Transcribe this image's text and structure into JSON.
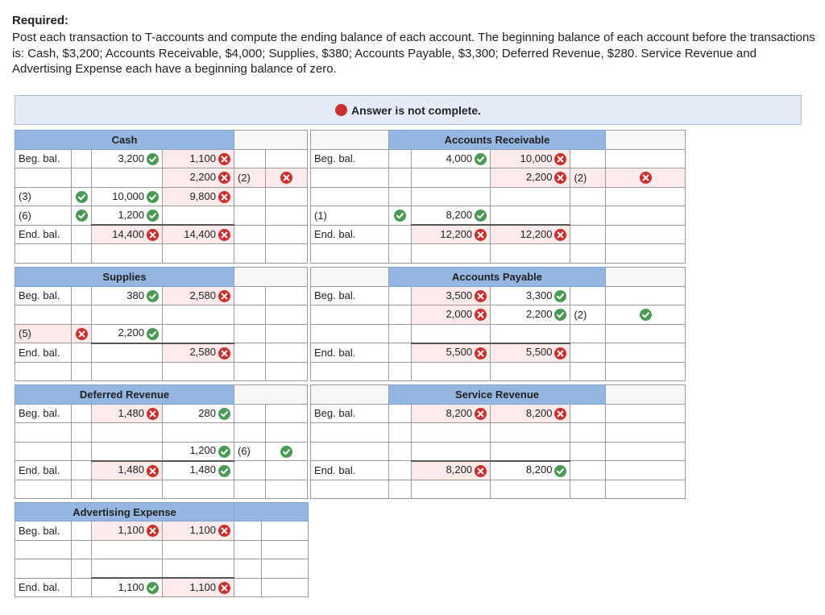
{
  "required": {
    "title": "Required:",
    "text": "Post each transaction to T-accounts and compute the ending balance of each account. The beginning balance of each account before the transactions is: Cash, $3,200; Accounts Receivable, $4,000; Supplies, $380; Accounts Payable, $3,300; Deferred Revenue, $280. Service Revenue and Advertising Expense each have a beginning balance of zero."
  },
  "banner": {
    "text": "Answer is not complete.",
    "icon": "x-circle-icon"
  },
  "colors": {
    "header_blue": "#95b6e1",
    "banner_bg": "#e4ecf8",
    "error_red": "#c9302c",
    "ok_green": "#4a9a55"
  },
  "accounts": {
    "cash": {
      "title": "Cash",
      "rows": [
        {
          "label": "Beg. bal.",
          "label_status": "",
          "debit": "3,200",
          "debit_status": "ok",
          "credit": "1,100",
          "credit_status": "x",
          "ref": "",
          "ref_status": ""
        },
        {
          "label": "",
          "label_status": "",
          "debit": "",
          "debit_status": "",
          "credit": "2,200",
          "credit_status": "x",
          "ref": "(2)",
          "ref_status": "x"
        },
        {
          "label": "(3)",
          "label_status": "ok",
          "debit": "10,000",
          "debit_status": "ok",
          "credit": "9,800",
          "credit_status": "x",
          "ref": "",
          "ref_status": ""
        },
        {
          "label": "(6)",
          "label_status": "ok",
          "debit": "1,200",
          "debit_status": "ok",
          "credit": "",
          "credit_status": "",
          "ref": "",
          "ref_status": ""
        },
        {
          "label": "End. bal.",
          "label_status": "",
          "debit": "14,400",
          "debit_status": "x",
          "credit": "14,400",
          "credit_status": "x",
          "ref": "",
          "ref_status": ""
        }
      ]
    },
    "accounts_receivable": {
      "title": "Accounts Receivable",
      "rows": [
        {
          "label": "Beg. bal.",
          "label_status": "",
          "debit": "4,000",
          "debit_status": "ok",
          "credit": "10,000",
          "credit_status": "x",
          "ref": "",
          "ref_status": ""
        },
        {
          "label": "",
          "label_status": "",
          "debit": "",
          "debit_status": "",
          "credit": "2,200",
          "credit_status": "x",
          "ref": "(2)",
          "ref_status": "x"
        },
        {
          "label": "",
          "label_status": "",
          "debit": "",
          "debit_status": "",
          "credit": "",
          "credit_status": "",
          "ref": "",
          "ref_status": ""
        },
        {
          "label": "(1)",
          "label_status": "ok",
          "debit": "8,200",
          "debit_status": "ok",
          "credit": "",
          "credit_status": "",
          "ref": "",
          "ref_status": ""
        },
        {
          "label": "End. bal.",
          "label_status": "",
          "debit": "12,200",
          "debit_status": "x",
          "credit": "12,200",
          "credit_status": "x",
          "ref": "",
          "ref_status": ""
        }
      ]
    },
    "supplies": {
      "title": "Supplies",
      "rows": [
        {
          "label": "Beg. bal.",
          "label_status": "",
          "debit": "380",
          "debit_status": "ok",
          "credit": "2,580",
          "credit_status": "x",
          "ref": "",
          "ref_status": ""
        },
        {
          "label": "",
          "label_status": "",
          "debit": "",
          "debit_status": "",
          "credit": "",
          "credit_status": "",
          "ref": "",
          "ref_status": ""
        },
        {
          "label": "(5)",
          "label_status": "x",
          "debit": "2,200",
          "debit_status": "ok",
          "credit": "",
          "credit_status": "",
          "ref": "",
          "ref_status": ""
        },
        {
          "label": "End. bal.",
          "label_status": "",
          "debit": "",
          "debit_status": "",
          "credit": "2,580",
          "credit_status": "x",
          "ref": "",
          "ref_status": ""
        }
      ]
    },
    "accounts_payable": {
      "title": "Accounts Payable",
      "rows": [
        {
          "label": "Beg. bal.",
          "label_status": "",
          "debit": "3,500",
          "debit_status": "x",
          "credit": "3,300",
          "credit_status": "ok",
          "ref": "",
          "ref_status": ""
        },
        {
          "label": "",
          "label_status": "",
          "debit": "2,000",
          "debit_status": "x",
          "credit": "2,200",
          "credit_status": "ok",
          "ref": "(2)",
          "ref_status": "ok"
        },
        {
          "label": "",
          "label_status": "",
          "debit": "",
          "debit_status": "",
          "credit": "",
          "credit_status": "",
          "ref": "",
          "ref_status": ""
        },
        {
          "label": "End. bal.",
          "label_status": "",
          "debit": "5,500",
          "debit_status": "x",
          "credit": "5,500",
          "credit_status": "x",
          "ref": "",
          "ref_status": ""
        }
      ]
    },
    "deferred_revenue": {
      "title": "Deferred Revenue",
      "rows": [
        {
          "label": "Beg. bal.",
          "label_status": "",
          "debit": "1,480",
          "debit_status": "x",
          "credit": "280",
          "credit_status": "ok",
          "ref": "",
          "ref_status": ""
        },
        {
          "label": "",
          "label_status": "",
          "debit": "",
          "debit_status": "",
          "credit": "",
          "credit_status": "",
          "ref": "",
          "ref_status": ""
        },
        {
          "label": "",
          "label_status": "",
          "debit": "",
          "debit_status": "",
          "credit": "1,200",
          "credit_status": "ok",
          "ref": "(6)",
          "ref_status": "ok"
        },
        {
          "label": "End. bal.",
          "label_status": "",
          "debit": "1,480",
          "debit_status": "x",
          "credit": "1,480",
          "credit_status": "ok",
          "ref": "",
          "ref_status": ""
        }
      ]
    },
    "service_revenue": {
      "title": "Service Revenue",
      "rows": [
        {
          "label": "Beg. bal.",
          "label_status": "",
          "debit": "8,200",
          "debit_status": "x",
          "credit": "8,200",
          "credit_status": "x",
          "ref": "",
          "ref_status": ""
        },
        {
          "label": "",
          "label_status": "",
          "debit": "",
          "debit_status": "",
          "credit": "",
          "credit_status": "",
          "ref": "",
          "ref_status": ""
        },
        {
          "label": "",
          "label_status": "",
          "debit": "",
          "debit_status": "",
          "credit": "",
          "credit_status": "",
          "ref": "",
          "ref_status": ""
        },
        {
          "label": "End. bal.",
          "label_status": "",
          "debit": "8,200",
          "debit_status": "x",
          "credit": "8,200",
          "credit_status": "ok",
          "ref": "",
          "ref_status": ""
        }
      ]
    },
    "advertising_expense": {
      "title": "Advertising Expense",
      "rows": [
        {
          "label": "Beg. bal.",
          "label_status": "",
          "debit": "1,100",
          "debit_status": "x",
          "credit": "1,100",
          "credit_status": "x",
          "ref": "",
          "ref_status": ""
        },
        {
          "label": "",
          "label_status": "",
          "debit": "",
          "debit_status": "",
          "credit": "",
          "credit_status": "",
          "ref": "",
          "ref_status": ""
        },
        {
          "label": "",
          "label_status": "",
          "debit": "",
          "debit_status": "",
          "credit": "",
          "credit_status": "",
          "ref": "",
          "ref_status": ""
        },
        {
          "label": "End. bal.",
          "label_status": "",
          "debit": "1,100",
          "debit_status": "ok",
          "credit": "1,100",
          "credit_status": "x",
          "ref": "",
          "ref_status": ""
        }
      ]
    }
  }
}
